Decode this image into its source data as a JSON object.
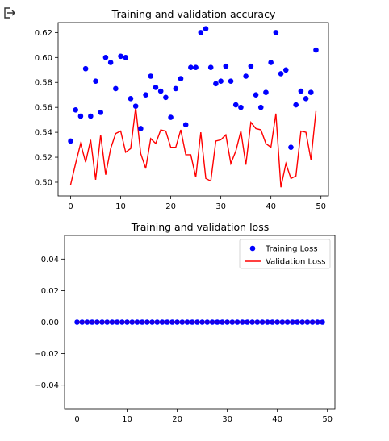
{
  "cell": {
    "output_icon": "output-arrow-icon"
  },
  "chart_data": [
    {
      "type": "scatter+line",
      "title": "Training and validation accuracy",
      "xlabel": "",
      "ylabel": "",
      "xlim": [
        -2.5,
        51.5
      ],
      "ylim": [
        0.489,
        0.628
      ],
      "xticks": [
        0,
        10,
        20,
        30,
        40,
        50
      ],
      "yticks": [
        0.5,
        0.52,
        0.54,
        0.56,
        0.58,
        0.6,
        0.62
      ],
      "ytick_labels": [
        "0.50",
        "0.52",
        "0.54",
        "0.56",
        "0.58",
        "0.60",
        "0.62"
      ],
      "grid": false,
      "legend": null,
      "series": [
        {
          "name": "",
          "kind": "points",
          "color": "#0000ff",
          "x": [
            0,
            1,
            2,
            3,
            4,
            5,
            6,
            7,
            8,
            9,
            10,
            11,
            12,
            13,
            14,
            15,
            16,
            17,
            18,
            19,
            20,
            21,
            22,
            23,
            24,
            25,
            26,
            27,
            28,
            29,
            30,
            31,
            32,
            33,
            34,
            35,
            36,
            37,
            38,
            39,
            40,
            41,
            42,
            43,
            44,
            45,
            46,
            47,
            48,
            49
          ],
          "values": [
            0.533,
            0.558,
            0.553,
            0.591,
            0.553,
            0.581,
            0.556,
            0.6,
            0.596,
            0.575,
            0.601,
            0.6,
            0.567,
            0.561,
            0.543,
            0.57,
            0.585,
            0.576,
            0.573,
            0.568,
            0.552,
            0.575,
            0.583,
            0.546,
            0.592,
            0.592,
            0.62,
            0.623,
            0.592,
            0.579,
            0.581,
            0.593,
            0.581,
            0.562,
            0.56,
            0.585,
            0.593,
            0.57,
            0.56,
            0.572,
            0.596,
            0.62,
            0.587,
            0.59,
            0.528,
            0.562,
            0.573,
            0.567,
            0.572,
            0.606
          ]
        },
        {
          "name": "",
          "kind": "line",
          "color": "#ff0000",
          "x": [
            0,
            1,
            2,
            3,
            4,
            5,
            6,
            7,
            8,
            9,
            10,
            11,
            12,
            13,
            14,
            15,
            16,
            17,
            18,
            19,
            20,
            21,
            22,
            23,
            24,
            25,
            26,
            27,
            28,
            29,
            30,
            31,
            32,
            33,
            34,
            35,
            36,
            37,
            38,
            39,
            40,
            41,
            42,
            43,
            44,
            45,
            46,
            47,
            48,
            49
          ],
          "values": [
            0.498,
            0.515,
            0.531,
            0.516,
            0.534,
            0.502,
            0.538,
            0.506,
            0.527,
            0.539,
            0.541,
            0.524,
            0.527,
            0.56,
            0.523,
            0.511,
            0.535,
            0.531,
            0.542,
            0.541,
            0.528,
            0.528,
            0.542,
            0.522,
            0.522,
            0.504,
            0.54,
            0.503,
            0.501,
            0.533,
            0.534,
            0.538,
            0.515,
            0.525,
            0.541,
            0.514,
            0.548,
            0.543,
            0.542,
            0.531,
            0.528,
            0.555,
            0.496,
            0.515,
            0.503,
            0.505,
            0.541,
            0.54,
            0.518,
            0.557
          ]
        }
      ]
    },
    {
      "type": "scatter+line",
      "title": "Training and validation loss",
      "xlabel": "",
      "ylabel": "",
      "xlim": [
        -2.5,
        51.5
      ],
      "ylim": [
        -0.055,
        0.055
      ],
      "xticks": [
        0,
        10,
        20,
        30,
        40,
        50
      ],
      "yticks": [
        -0.04,
        -0.02,
        0.0,
        0.02,
        0.04
      ],
      "ytick_labels": [
        "−0.04",
        "−0.02",
        "0.00",
        "0.02",
        "0.04"
      ],
      "grid": false,
      "legend": "top-right",
      "series": [
        {
          "name": "Training Loss",
          "kind": "points",
          "color": "#0000ff",
          "x": [
            0,
            1,
            2,
            3,
            4,
            5,
            6,
            7,
            8,
            9,
            10,
            11,
            12,
            13,
            14,
            15,
            16,
            17,
            18,
            19,
            20,
            21,
            22,
            23,
            24,
            25,
            26,
            27,
            28,
            29,
            30,
            31,
            32,
            33,
            34,
            35,
            36,
            37,
            38,
            39,
            40,
            41,
            42,
            43,
            44,
            45,
            46,
            47,
            48,
            49
          ],
          "values": [
            0,
            0,
            0,
            0,
            0,
            0,
            0,
            0,
            0,
            0,
            0,
            0,
            0,
            0,
            0,
            0,
            0,
            0,
            0,
            0,
            0,
            0,
            0,
            0,
            0,
            0,
            0,
            0,
            0,
            0,
            0,
            0,
            0,
            0,
            0,
            0,
            0,
            0,
            0,
            0,
            0,
            0,
            0,
            0,
            0,
            0,
            0,
            0,
            0,
            0
          ]
        },
        {
          "name": "Validation Loss",
          "kind": "line",
          "color": "#ff0000",
          "x": [
            0,
            1,
            2,
            3,
            4,
            5,
            6,
            7,
            8,
            9,
            10,
            11,
            12,
            13,
            14,
            15,
            16,
            17,
            18,
            19,
            20,
            21,
            22,
            23,
            24,
            25,
            26,
            27,
            28,
            29,
            30,
            31,
            32,
            33,
            34,
            35,
            36,
            37,
            38,
            39,
            40,
            41,
            42,
            43,
            44,
            45,
            46,
            47,
            48,
            49
          ],
          "values": [
            0,
            0,
            0,
            0,
            0,
            0,
            0,
            0,
            0,
            0,
            0,
            0,
            0,
            0,
            0,
            0,
            0,
            0,
            0,
            0,
            0,
            0,
            0,
            0,
            0,
            0,
            0,
            0,
            0,
            0,
            0,
            0,
            0,
            0,
            0,
            0,
            0,
            0,
            0,
            0,
            0,
            0,
            0,
            0,
            0,
            0,
            0,
            0,
            0,
            0
          ]
        }
      ]
    }
  ]
}
